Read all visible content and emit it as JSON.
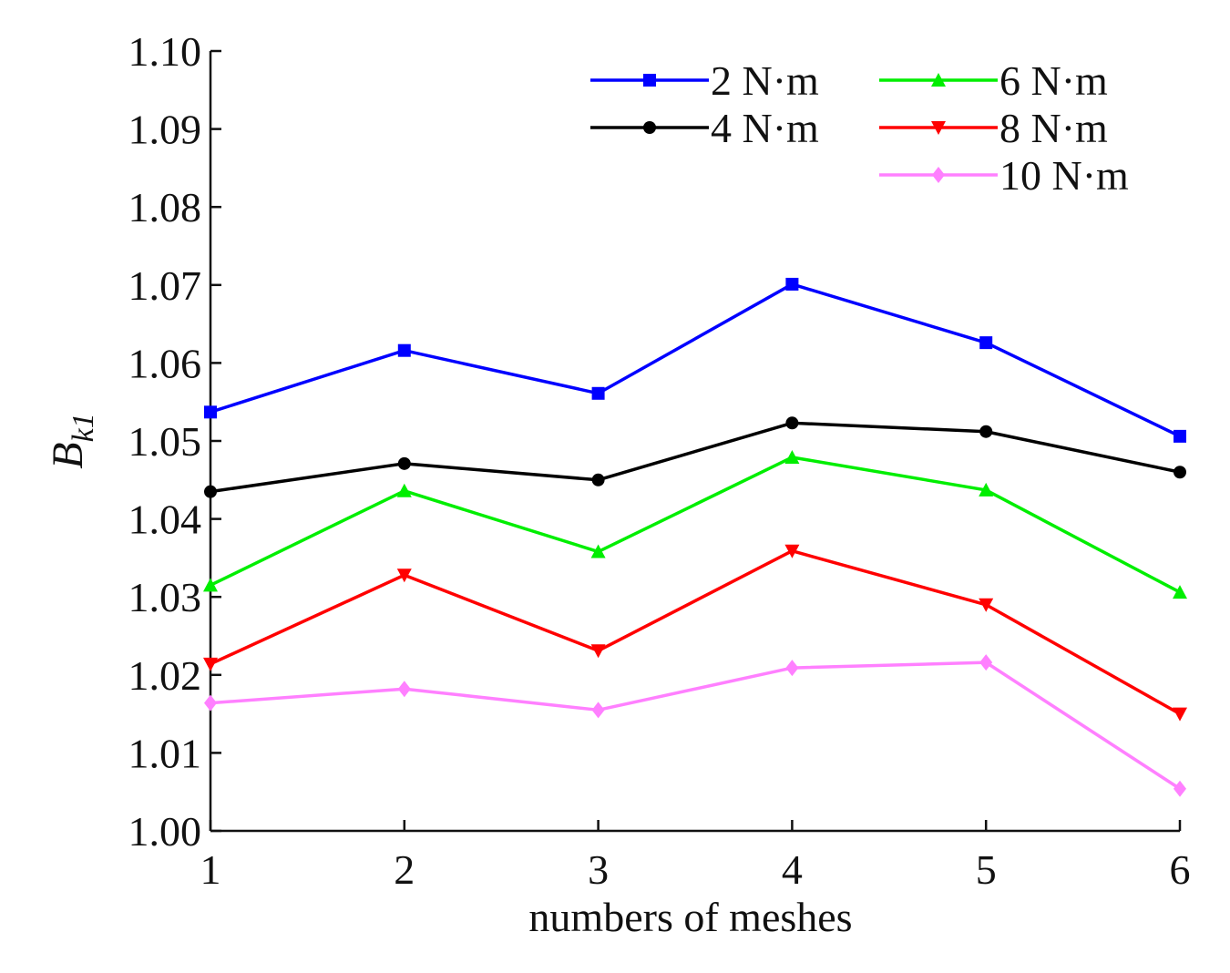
{
  "chart_data": {
    "type": "line",
    "title": "",
    "xlabel": "numbers of meshes",
    "ylabel": "B",
    "ylabel_subscript": "k1",
    "x": [
      1,
      2,
      3,
      4,
      5,
      6
    ],
    "x_tick_labels": [
      "1",
      "2",
      "3",
      "4",
      "5",
      "6"
    ],
    "xlim": [
      1,
      6
    ],
    "ylim": [
      1.0,
      1.1
    ],
    "y_tick_labels": [
      "1.00",
      "1.01",
      "1.02",
      "1.03",
      "1.04",
      "1.05",
      "1.06",
      "1.07",
      "1.08",
      "1.09",
      "1.10"
    ],
    "grid": false,
    "legend_position": "top-right",
    "series": [
      {
        "name": "2 N·m",
        "color": "#0000ff",
        "marker": "square",
        "values": [
          1.0537,
          1.0616,
          1.0561,
          1.0701,
          1.0626,
          1.0506
        ]
      },
      {
        "name": "4 N·m",
        "color": "#000000",
        "marker": "circle",
        "values": [
          1.0435,
          1.0471,
          1.045,
          1.0523,
          1.0512,
          1.046
        ]
      },
      {
        "name": "6 N·m",
        "color": "#00ee00",
        "marker": "triangle-up",
        "values": [
          1.0315,
          1.0436,
          1.0358,
          1.0479,
          1.0437,
          1.0306
        ]
      },
      {
        "name": "8 N·m",
        "color": "#ff0000",
        "marker": "triangle-down",
        "values": [
          1.0214,
          1.0328,
          1.0231,
          1.0359,
          1.029,
          1.015
        ]
      },
      {
        "name": "10 N·m",
        "color": "#ff80ff",
        "marker": "diamond",
        "values": [
          1.0164,
          1.0182,
          1.0155,
          1.0209,
          1.0216,
          1.0054
        ]
      }
    ]
  }
}
